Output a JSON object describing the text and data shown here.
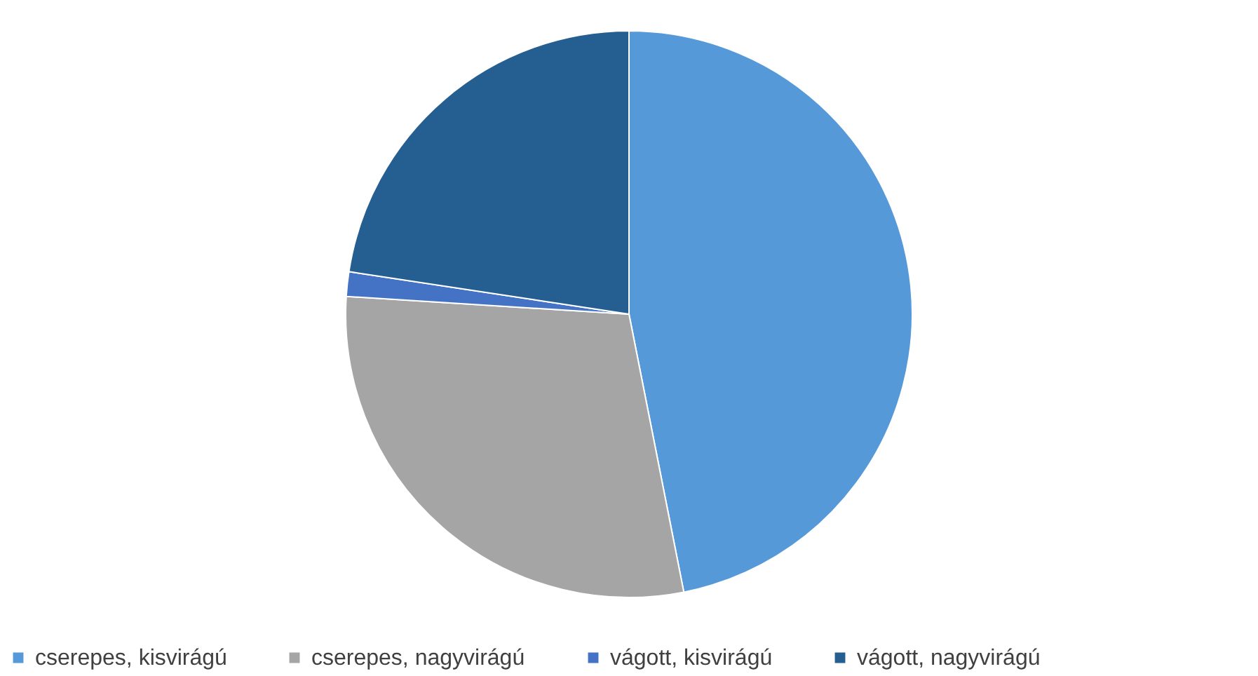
{
  "chart_data": {
    "type": "pie",
    "categories": [
      "cserepes, kisvirágú",
      "cserepes, nagyvirágú",
      "vágott, kisvirágú",
      "vágott, nagyvirágú"
    ],
    "values": [
      46.9,
      29.1,
      1.4,
      22.6
    ],
    "colors": [
      "#5599d8",
      "#a5a5a5",
      "#4472c4",
      "#255e91"
    ],
    "legend": "bottom"
  }
}
